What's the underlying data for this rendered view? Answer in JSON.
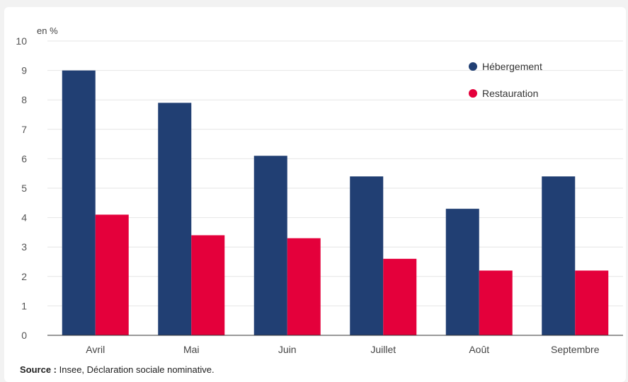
{
  "chart_data": {
    "type": "bar",
    "ylabel": "en %",
    "ylim": [
      0,
      10
    ],
    "yticks": [
      "0",
      "1",
      "2",
      "3",
      "4",
      "5",
      "6",
      "7",
      "8",
      "9",
      "10"
    ],
    "categories": [
      "Avril",
      "Mai",
      "Juin",
      "Juillet",
      "Août",
      "Septembre"
    ],
    "series": [
      {
        "name": "Hébergement",
        "color": "#213f73",
        "values": [
          9.0,
          7.9,
          6.1,
          5.4,
          4.3,
          5.4
        ]
      },
      {
        "name": "Restauration",
        "color": "#e4003b",
        "values": [
          4.1,
          3.4,
          3.3,
          2.6,
          2.2,
          2.2
        ]
      }
    ],
    "grid": true,
    "legend_position": "top-right"
  },
  "source": {
    "label": "Source :",
    "text": " Insee, Déclaration sociale nominative."
  }
}
